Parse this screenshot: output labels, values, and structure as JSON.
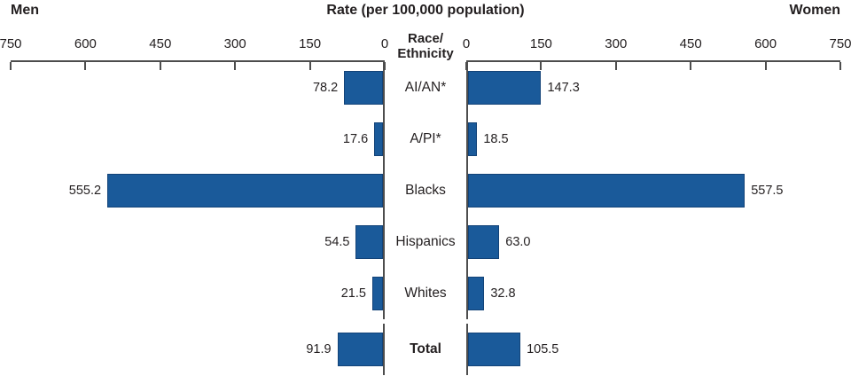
{
  "header": {
    "left": "Men",
    "title": "Rate (per 100,000 population)",
    "right": "Women"
  },
  "chart_data": {
    "type": "bar",
    "variant": "bidirectional-horizontal",
    "title": "Rate (per 100,000 population)",
    "axis_label": "Race/Ethnicity",
    "axis_label_display": "Race/\nEthnicity",
    "categories": [
      "AI/AN*",
      "A/PI*",
      "Blacks",
      "Hispanics",
      "Whites",
      "Total"
    ],
    "bold_categories": [
      "Total"
    ],
    "series": [
      {
        "name": "Men",
        "side": "left",
        "values": [
          78.2,
          17.6,
          555.2,
          54.5,
          21.5,
          91.9
        ]
      },
      {
        "name": "Women",
        "side": "right",
        "values": [
          147.3,
          18.5,
          557.5,
          63.0,
          32.8,
          105.5
        ]
      }
    ],
    "xlim": [
      0,
      750
    ],
    "left_ticks": [
      750,
      600,
      450,
      300,
      150,
      0
    ],
    "right_ticks": [
      0,
      150,
      300,
      450,
      600,
      750
    ],
    "bar_color": "#1A5A9A",
    "axis_color": "#4D4D4D",
    "grid": false,
    "legend_position": "none"
  }
}
